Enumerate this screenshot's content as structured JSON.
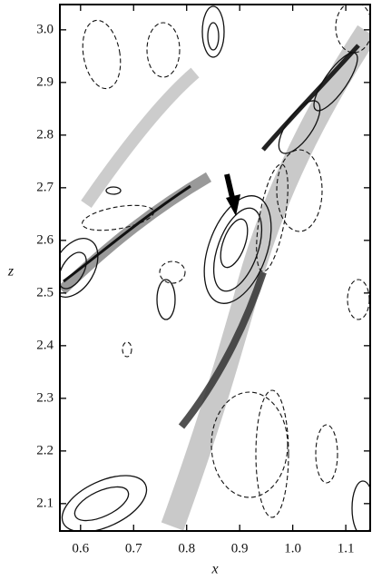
{
  "chart_data": {
    "type": "contour",
    "xlabel": "x",
    "ylabel": "z",
    "xlim": [
      0.561,
      1.146
    ],
    "xticks": [
      0.6,
      0.7,
      0.8,
      0.9,
      {
        "value": 1,
        "label": "1.0"
      },
      1.1
    ],
    "ylim": [
      2.048,
      3.048
    ],
    "yticks": [
      2.1,
      2.2,
      2.3,
      2.4,
      2.5,
      2.6,
      2.7,
      2.8,
      2.9,
      {
        "value": 3,
        "label": "3.0"
      }
    ]
  }
}
